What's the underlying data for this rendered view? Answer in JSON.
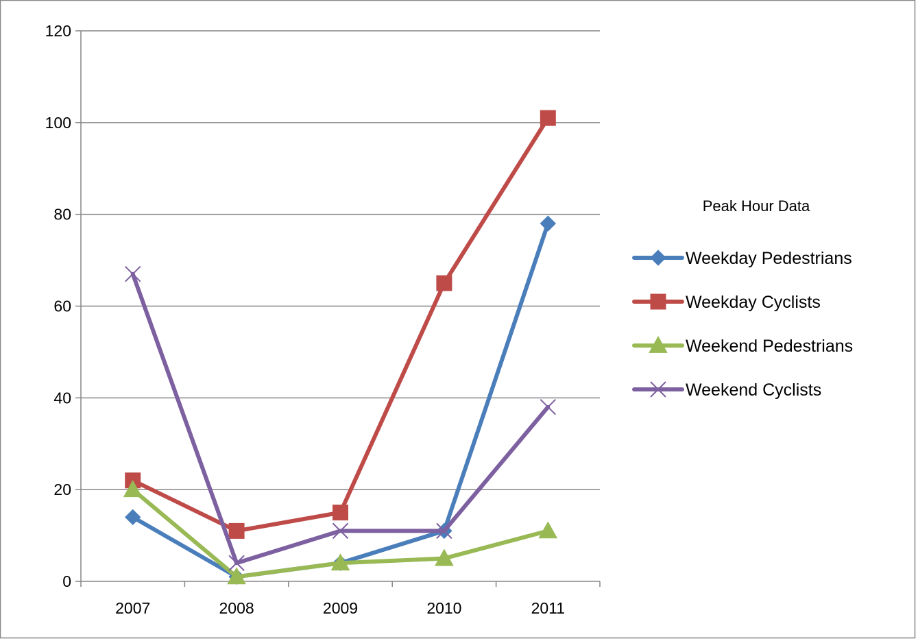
{
  "chart_data": {
    "type": "line",
    "categories": [
      "2007",
      "2008",
      "2009",
      "2010",
      "2011"
    ],
    "ylim": [
      0,
      120
    ],
    "yticks": [
      0,
      20,
      40,
      60,
      80,
      100,
      120
    ],
    "grid": "horizontal",
    "legend_position": "right",
    "legend_title": "Peak Hour Data",
    "series": [
      {
        "name": "Weekday Pedestrians",
        "color": "#4a7ebb",
        "marker": "diamond",
        "values": [
          14,
          1,
          4,
          11,
          78
        ]
      },
      {
        "name": "Weekday Cyclists",
        "color": "#be4b48",
        "marker": "square",
        "values": [
          22,
          11,
          15,
          65,
          101
        ]
      },
      {
        "name": "Weekend Pedestrians",
        "color": "#98b954",
        "marker": "triangle",
        "values": [
          20,
          1,
          4,
          5,
          11
        ]
      },
      {
        "name": "Weekend Cyclists",
        "color": "#7d60a0",
        "marker": "x",
        "values": [
          67,
          4,
          11,
          11,
          38
        ]
      }
    ]
  }
}
